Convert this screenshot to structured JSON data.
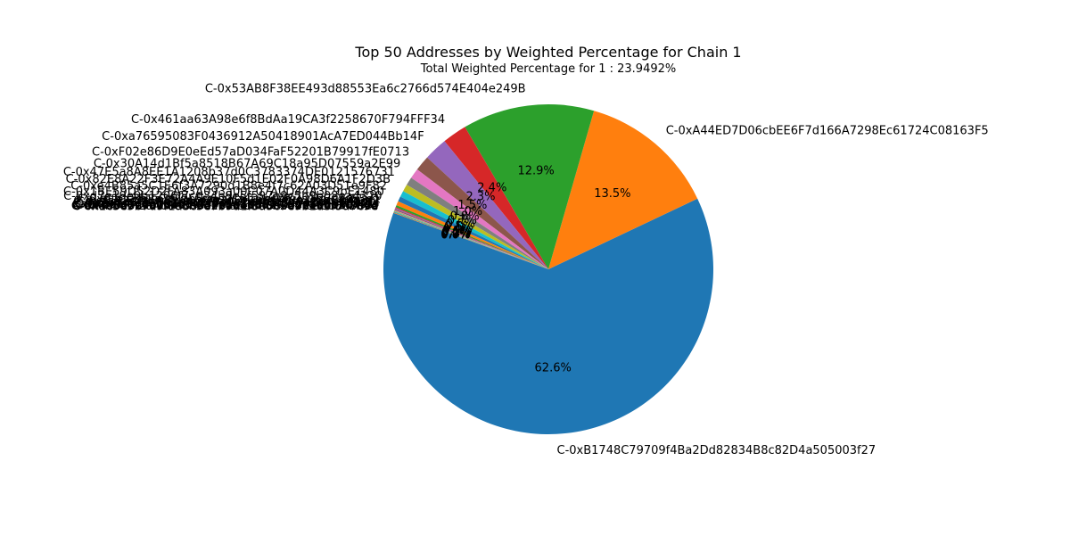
{
  "chart_data": {
    "type": "pie",
    "title": "Top 50 Addresses by Weighted Percentage for Chain 1",
    "subtitle": "Total Weighted Percentage for 1 : 23.9492%",
    "start_angle_deg": 160,
    "direction": "counterclockwise",
    "slices": [
      {
        "label": "C-0xB1748C79709f4Ba2Dd82834B8c82D4a505003f27",
        "value": 62.6,
        "pct_label": "62.6%",
        "color": "#1f77b4"
      },
      {
        "label": "C-0xA44ED7D06cbEE6F7d166A7298Ec61724C08163F5",
        "value": 13.5,
        "pct_label": "13.5%",
        "color": "#ff7f0e"
      },
      {
        "label": "C-0x53AB8F38EE493d88553Ea6c2766d574E404e249B",
        "value": 12.9,
        "pct_label": "12.9%",
        "color": "#2ca02c"
      },
      {
        "label": "C-0x461aa63A98e6f8BdAa19CA3f2258670F794FFF34",
        "value": 2.4,
        "pct_label": "2.4%",
        "color": "#d62728"
      },
      {
        "label": "C-0xa76595083F0436912A50418901AcA7ED044Bb14F",
        "value": 2.3,
        "pct_label": "2.3%",
        "color": "#9467bd"
      },
      {
        "label": "C-0xF02e86D9E0eEd57aD034FaF52201B79917fE0713",
        "value": 1.5,
        "pct_label": "1.5%",
        "color": "#8c564b"
      },
      {
        "label": "C-0x30A14d1Bf5a8518B67A69C18a95D07559a2E99",
        "value": 1.0,
        "pct_label": "1.0%",
        "color": "#e377c2"
      },
      {
        "label": "C-0x47E5a8A8EE1A1208b37d0C3783374DE0121576731",
        "value": 0.8,
        "pct_label": "0.8%",
        "color": "#7f7f7f"
      },
      {
        "label": "C-0x82E8A22F3E72A4A9E10F5d1E02F0A98D6A1F2D3B",
        "value": 0.7,
        "pct_label": "0.7%",
        "color": "#bcbd22"
      },
      {
        "label": "C-0xe4B85a5C1E6f3A7290d1B8e4f7c62A03D51e9F82",
        "value": 0.6,
        "pct_label": "0.6%",
        "color": "#17becf"
      },
      {
        "label": "C-0x1BE59D52D2FA83A093a00C07A0D44A3C9bE1480",
        "value": 0.5,
        "pct_label": "0.5%",
        "color": "#1f77b4"
      },
      {
        "label": "C-0xd7e19e0b1206f7cd34b9e5f597e9c5b9b08ea4320",
        "value": 0.4,
        "pct_label": "0.4%",
        "color": "#ff7f0e"
      },
      {
        "label": "C-0x0ff0c3b8d3f29b5a6e01f4c2e9d77a1b6c3e55d1",
        "value": 0.2,
        "pct_label": "0.2%",
        "color": "#2ca02c"
      },
      {
        "label": "C-0x9a42e1d8c7b6a5f4e3d2c1b0a9f8e7d6c5b4a3f2",
        "value": 0.1,
        "pct_label": "0.1%",
        "color": "#d62728"
      },
      {
        "label": "C-0x5c3e7f1a9b2d4e6f8a0c1e3b5d7f9a2c4e6b8d0f",
        "value": 0.1,
        "pct_label": "0.1%",
        "color": "#9467bd"
      },
      {
        "label": "C-0x2b4d6f8a0c2e4a6c8e0b2d4f6a8c0e2b4d6f8a0c",
        "value": 0.1,
        "pct_label": "0.1%",
        "color": "#8c564b"
      },
      {
        "label": "C-0x7e9a1c3e5b7d9f1a3c5e7b9d1f3a5c7e9b1d3f5a",
        "value": 0.05,
        "pct_label": "0.0%",
        "color": "#e377c2"
      },
      {
        "label": "C-0x3d5f7a9c1e3b5d7f9a1c3e5b7d9f1a3c5e7b9d1f",
        "value": 0.05,
        "pct_label": "0.0%",
        "color": "#7f7f7f"
      },
      {
        "label": "C-0x8f0a2c4e6b8d0f2a4c6e8b0d2f4a6c8e0b2d4f6a",
        "value": 0.05,
        "pct_label": "0.0%",
        "color": "#bcbd22"
      },
      {
        "label": "C-0x4a6c8e0b2d4f6a8c0e2b4d6f8a0c2e4b6d8f0a2c",
        "value": 0.05,
        "pct_label": "0.0%",
        "color": "#17becf"
      },
      {
        "label": "C-0x6b8d0f2a4c6e8b0d2f4a6c8e0b2d4f6a8c0e2b4d",
        "value": 0.05,
        "pct_label": "0.0%",
        "color": "#1f77b4"
      },
      {
        "label": "C-0x1c3e5b7d9f1a3c5e7b9d1f3a5c7e9b1d3f5a7c9e",
        "value": 0.05,
        "pct_label": "0.0%",
        "color": "#ff7f0e"
      }
    ]
  }
}
